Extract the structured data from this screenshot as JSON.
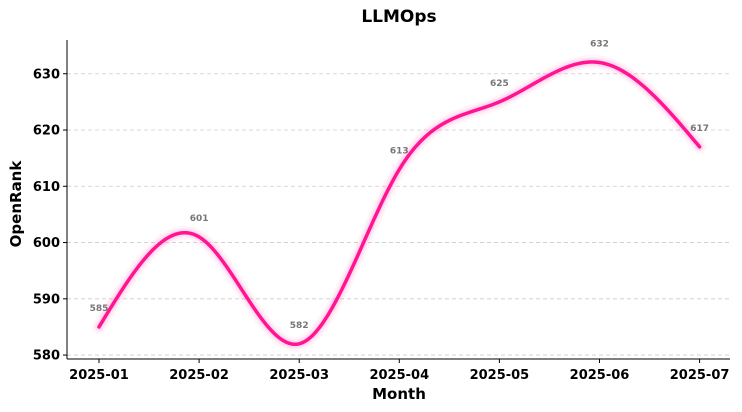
{
  "chart_data": {
    "type": "line",
    "title": "LLMOps",
    "xlabel": "Month",
    "ylabel": "OpenRank",
    "categories": [
      "2025-01",
      "2025-02",
      "2025-03",
      "2025-04",
      "2025-05",
      "2025-06",
      "2025-07"
    ],
    "values": [
      585,
      601,
      582,
      613,
      625,
      632,
      617
    ],
    "data_labels": [
      "585",
      "601",
      "582",
      "613",
      "625",
      "632",
      "617"
    ],
    "yticks": [
      "580",
      "590",
      "600",
      "610",
      "620",
      "630"
    ],
    "ytick_values": [
      580,
      590,
      600,
      610,
      620,
      630
    ],
    "ylim": [
      579.3,
      636.0
    ],
    "grid": "horizontal-dashed",
    "line_color": "#ff1493",
    "glow_color": "#ff69b4",
    "smooth": true
  }
}
